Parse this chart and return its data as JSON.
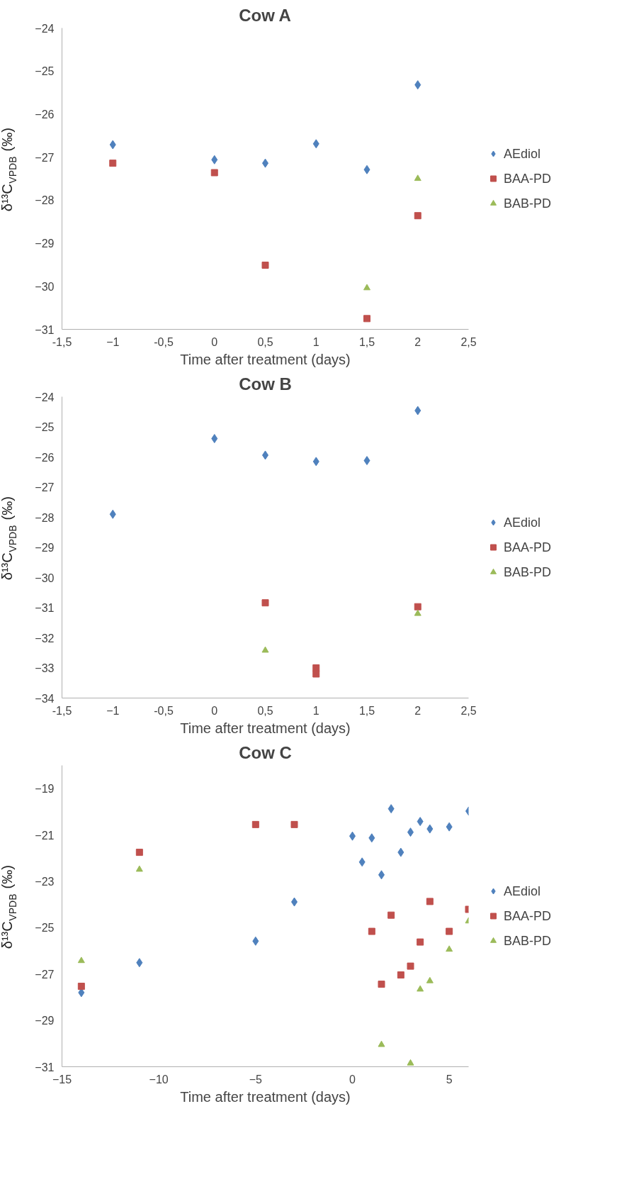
{
  "chart_data": [
    {
      "type": "scatter",
      "title": "Cow A",
      "xlabel": "Time after treatment (days)",
      "ylabel": "δ¹³C$_{VPDB}$ (‰)",
      "xlim": [
        -1.5,
        2.5
      ],
      "xticks": [
        {
          "value": -1.5,
          "label": "-1,5"
        },
        -1,
        {
          "value": -0.5,
          "label": "-0,5"
        },
        0,
        {
          "value": 0.5,
          "label": "0,5"
        },
        1,
        {
          "value": 1.5,
          "label": "1,5"
        },
        2,
        {
          "value": 2.5,
          "label": "2,5"
        }
      ],
      "ylim": [
        -31,
        -24
      ],
      "yticks": [
        -31,
        -30,
        -29,
        -28,
        -27,
        -26,
        -25,
        -24
      ],
      "grid": false,
      "legend": "right",
      "series": [
        {
          "name": "AEdiol",
          "color": "#4f81bd",
          "marker": "diamond",
          "x": [
            -1,
            0,
            0.5,
            1,
            1.5,
            2
          ],
          "values": [
            -26.71,
            -27.06,
            -27.14,
            -26.69,
            -27.29,
            -25.32
          ]
        },
        {
          "name": "BAA-PD",
          "color": "#c0504d",
          "marker": "square",
          "x": [
            -1,
            0,
            0.5,
            1.5,
            2
          ],
          "values": [
            -27.14,
            -27.36,
            -29.51,
            -30.75,
            -28.36
          ]
        },
        {
          "name": "BAB-PD",
          "color": "#9bbb59",
          "marker": "triangle",
          "x": [
            1.5,
            2
          ],
          "values": [
            -30.04,
            -27.5
          ]
        }
      ]
    },
    {
      "type": "scatter",
      "title": "Cow B",
      "xlabel": "Time after treatment (days)",
      "ylabel": "δ¹³C$_{VPDB}$ (‰)",
      "xlim": [
        -1.5,
        2.5
      ],
      "xticks": [
        {
          "value": -1.5,
          "label": "-1,5"
        },
        -1,
        {
          "value": -0.5,
          "label": "-0,5"
        },
        0,
        {
          "value": 0.5,
          "label": "0,5"
        },
        1,
        {
          "value": 1.5,
          "label": "1,5"
        },
        2,
        {
          "value": 2.5,
          "label": "2,5"
        }
      ],
      "ylim": [
        -34,
        -24
      ],
      "yticks": [
        -34,
        -33,
        -32,
        -31,
        -30,
        -29,
        -28,
        -27,
        -26,
        -25,
        -24
      ],
      "grid": false,
      "legend": "right",
      "series": [
        {
          "name": "AEdiol",
          "color": "#4f81bd",
          "marker": "diamond",
          "x": [
            -1,
            0,
            0.5,
            1,
            1.5,
            2
          ],
          "values": [
            -27.9,
            -25.39,
            -25.94,
            -26.15,
            -26.12,
            -24.46
          ]
        },
        {
          "name": "BAA-PD",
          "color": "#c0504d",
          "marker": "square",
          "x": [
            0.5,
            1,
            1,
            2
          ],
          "values": [
            -30.84,
            -33.0,
            -33.2,
            -30.97
          ]
        },
        {
          "name": "BAB-PD",
          "color": "#9bbb59",
          "marker": "triangle",
          "x": [
            0.5,
            2
          ],
          "values": [
            -32.42,
            -31.2
          ]
        }
      ]
    },
    {
      "type": "scatter",
      "title": "Cow C",
      "xlabel": "Time after treatment (days)",
      "ylabel": "δ¹³C$_{VPDB}$ (‰)",
      "xlim": [
        -15,
        6
      ],
      "xticks": [
        -15,
        -10,
        -5,
        0,
        5
      ],
      "ylim": [
        -31,
        -18
      ],
      "yticks": [
        -31,
        -29,
        -27,
        -25,
        -23,
        -21,
        -19
      ],
      "grid": false,
      "legend": "right",
      "series": [
        {
          "name": "AEdiol",
          "color": "#4f81bd",
          "marker": "diamond",
          "x": [
            -14,
            -11,
            -5,
            -3,
            0,
            0.5,
            1,
            1.5,
            2,
            2.5,
            3,
            3.5,
            4,
            5,
            6
          ],
          "values": [
            -27.8,
            -26.51,
            -25.58,
            -23.89,
            -21.05,
            -22.17,
            -21.13,
            -22.72,
            -19.87,
            -21.75,
            -20.88,
            -20.42,
            -20.74,
            -20.65,
            -19.97
          ]
        },
        {
          "name": "BAA-PD",
          "color": "#c0504d",
          "marker": "square",
          "x": [
            -14,
            -11,
            -5,
            -3,
            1,
            1.5,
            2,
            2.5,
            3,
            3.5,
            4,
            5,
            6
          ],
          "values": [
            -27.53,
            -21.75,
            -20.55,
            -20.55,
            -25.16,
            -27.44,
            -24.46,
            -27.04,
            -26.66,
            -25.62,
            -23.87,
            -25.16,
            -24.21
          ]
        },
        {
          "name": "BAB-PD",
          "color": "#9bbb59",
          "marker": "triangle",
          "x": [
            -14,
            -11,
            1.5,
            3,
            3.5,
            4,
            5,
            6
          ],
          "values": [
            -26.43,
            -22.49,
            -30.05,
            -30.85,
            -27.66,
            -27.3,
            -25.94,
            -24.72
          ]
        }
      ]
    }
  ]
}
